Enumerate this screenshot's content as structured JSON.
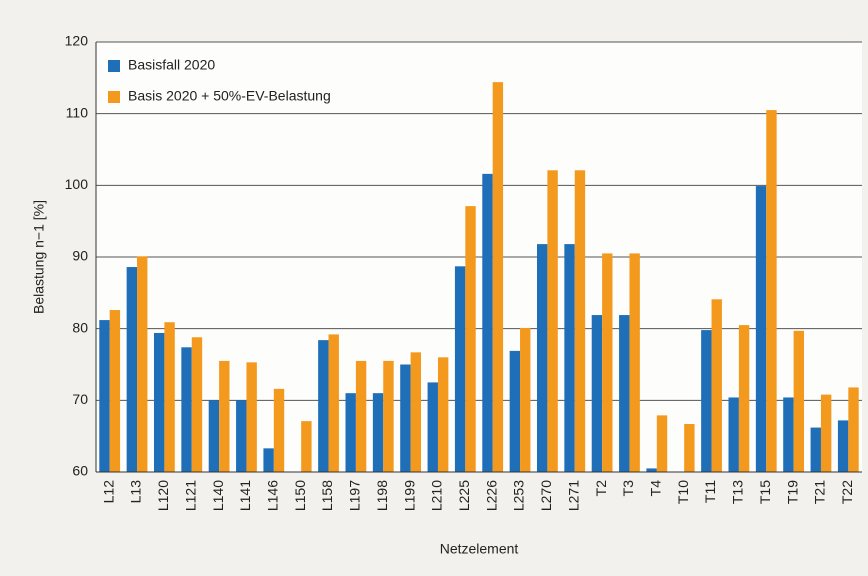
{
  "chart_data": {
    "type": "bar",
    "y_label": "Belastung n−1 [%]",
    "x_label": "Netzelement",
    "categories": [
      "L12",
      "L13",
      "L120",
      "L121",
      "L140",
      "L141",
      "L146",
      "L150",
      "L158",
      "L197",
      "L198",
      "L199",
      "L210",
      "L225",
      "L226",
      "L253",
      "L270",
      "L271",
      "T2",
      "T3",
      "T4",
      "T10",
      "T11",
      "T13",
      "T15",
      "T19",
      "T21",
      "T22"
    ],
    "series": [
      {
        "name": "Basisfall 2020",
        "color": "#1f6fb8",
        "values": [
          81.2,
          88.6,
          79.4,
          77.4,
          70,
          70,
          63.3,
          null,
          78.4,
          71,
          71,
          75,
          72.5,
          88.7,
          101.6,
          76.9,
          91.8,
          91.8,
          81.9,
          81.9,
          60.5,
          null,
          79.8,
          70.4,
          99.9,
          70.4,
          66.2,
          67.2
        ]
      },
      {
        "name": "Basis 2020 + 50%-EV-Belastung",
        "color": "#f39a1e",
        "values": [
          82.6,
          90.1,
          80.9,
          78.8,
          75.5,
          75.3,
          71.6,
          67.1,
          79.2,
          75.5,
          75.5,
          76.7,
          76,
          97.1,
          114.4,
          80.1,
          102.1,
          102.1,
          90.5,
          90.5,
          67.9,
          66.7,
          84.1,
          80.5,
          110.5,
          79.7,
          70.8,
          71.8
        ]
      }
    ],
    "ylim": [
      60,
      120
    ],
    "yticks": [
      60,
      70,
      80,
      90,
      100,
      110,
      120
    ],
    "grid": true,
    "legend": "top-left"
  }
}
